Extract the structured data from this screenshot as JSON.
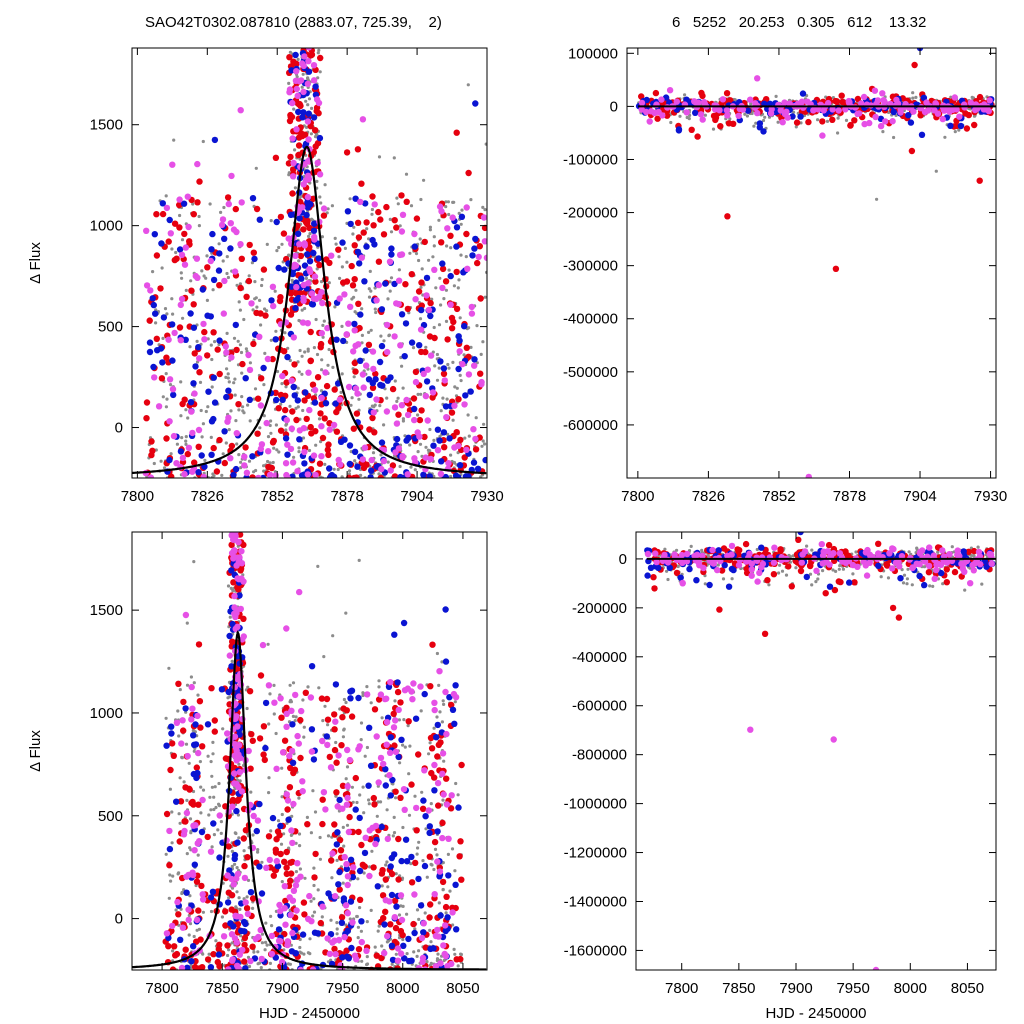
{
  "header": {
    "left": "SAO42T0302.087810 (2883.07, 725.39,    2)",
    "right": "6   5252   20.253   0.305   612    13.32"
  },
  "colors": {
    "gray": "#8c8c8c",
    "red": "#e6000f",
    "blue": "#0a14d2",
    "magenta": "#e650e6",
    "fit": "#000000"
  },
  "chart_data": [
    {
      "id": "top-left",
      "type": "scatter",
      "xlim": [
        7798,
        7930
      ],
      "ylim": [
        -250,
        1880
      ],
      "xticks": [
        7800,
        7826,
        7852,
        7878,
        7904,
        7930
      ],
      "xticklabels": [
        "7800",
        "7826",
        "7852",
        "7878",
        "7904",
        "7930"
      ],
      "yticks": [
        0,
        500,
        1000,
        1500
      ],
      "yticklabels": [
        "0",
        "500",
        "1000",
        "1500"
      ],
      "ylabel": "Δ Flux",
      "xlabel": "",
      "fit": {
        "type": "lorentzian",
        "t0": 7863,
        "tE": 12,
        "peak": 1390,
        "base": -250
      },
      "points": {
        "seed": 11,
        "x_range": [
          7803,
          7930
        ],
        "peak_x": 7862,
        "clusters": [
          7818,
          7838,
          7862,
          7888,
          7905,
          7920
        ]
      }
    },
    {
      "id": "top-right",
      "type": "scatter",
      "xlim": [
        7796,
        7932
      ],
      "ylim": [
        -700000,
        110000
      ],
      "xticks": [
        7800,
        7826,
        7852,
        7878,
        7904,
        7930
      ],
      "xticklabels": [
        "7800",
        "7826",
        "7852",
        "7878",
        "7904",
        "7930"
      ],
      "yticks": [
        100000,
        0,
        -100000,
        -200000,
        -300000,
        -400000,
        -500000,
        -600000
      ],
      "yticklabels": [
        "100000",
        "0",
        "-100000",
        "-200000",
        "-300000",
        "-400000",
        "-500000",
        "-600000"
      ],
      "ylabel": "",
      "xlabel": "",
      "outliers": [
        {
          "x": 7833,
          "y": -207000,
          "c": "red"
        },
        {
          "x": 7873,
          "y": -306000,
          "c": "red"
        },
        {
          "x": 7863,
          "y": -698000,
          "c": "magenta"
        },
        {
          "x": 7902,
          "y": 78000,
          "c": "red"
        },
        {
          "x": 7904,
          "y": 110000,
          "c": "blue"
        },
        {
          "x": 7926,
          "y": -140000,
          "c": "red"
        },
        {
          "x": 7901,
          "y": -84000,
          "c": "red"
        },
        {
          "x": 7844,
          "y": 53000,
          "c": "magenta"
        },
        {
          "x": 7888,
          "y": -175000,
          "c": "gray"
        },
        {
          "x": 7910,
          "y": -122000,
          "c": "gray"
        },
        {
          "x": 7845,
          "y": -32000,
          "c": "blue"
        },
        {
          "x": 7868,
          "y": -55000,
          "c": "magenta"
        }
      ]
    },
    {
      "id": "bottom-left",
      "type": "scatter",
      "xlim": [
        7775,
        8070
      ],
      "ylim": [
        -250,
        1880
      ],
      "xticks": [
        7800,
        7850,
        7900,
        7950,
        8000,
        8050
      ],
      "xticklabels": [
        "7800",
        "7850",
        "7900",
        "7950",
        "8000",
        "8050"
      ],
      "yticks": [
        0,
        500,
        1000,
        1500
      ],
      "yticklabels": [
        "0",
        "500",
        "1000",
        "1500"
      ],
      "ylabel": "Δ Flux",
      "xlabel": "HJD - 2450000",
      "fit": {
        "type": "lorentzian",
        "t0": 7863,
        "tE": 12,
        "peak": 1390,
        "base": -250
      },
      "points": {
        "seed": 23,
        "x_range": [
          7803,
          8050
        ],
        "peak_x": 7862,
        "clusters": [
          7825,
          7862,
          7905,
          7950,
          7990,
          8030
        ]
      }
    },
    {
      "id": "bottom-right",
      "type": "scatter",
      "xlim": [
        7760,
        8075
      ],
      "ylim": [
        -1680000,
        110000
      ],
      "xticks": [
        7800,
        7850,
        7900,
        7950,
        8000,
        8050
      ],
      "xticklabels": [
        "7800",
        "7850",
        "7900",
        "7950",
        "8000",
        "8050"
      ],
      "yticks": [
        0,
        -200000,
        -400000,
        -600000,
        -800000,
        -1000000,
        -1200000,
        -1400000,
        -1600000
      ],
      "yticklabels": [
        "0",
        "-200000",
        "-400000",
        "-600000",
        "-800000",
        "-1000000",
        "-1200000",
        "-1400000",
        "-1600000"
      ],
      "ylabel": "",
      "xlabel": "HJD - 2450000",
      "outliers": [
        {
          "x": 7833,
          "y": -207000,
          "c": "red"
        },
        {
          "x": 7873,
          "y": -306000,
          "c": "red"
        },
        {
          "x": 7860,
          "y": -698000,
          "c": "magenta"
        },
        {
          "x": 7933,
          "y": -738000,
          "c": "magenta"
        },
        {
          "x": 7970,
          "y": -1680000,
          "c": "magenta"
        },
        {
          "x": 7985,
          "y": -200000,
          "c": "red"
        },
        {
          "x": 7990,
          "y": -240000,
          "c": "red"
        },
        {
          "x": 7926,
          "y": -140000,
          "c": "red"
        },
        {
          "x": 7904,
          "y": 110000,
          "c": "blue"
        },
        {
          "x": 7902,
          "y": 78000,
          "c": "red"
        },
        {
          "x": 7844,
          "y": 53000,
          "c": "magenta"
        },
        {
          "x": 8045,
          "y": -72000,
          "c": "red"
        }
      ]
    }
  ]
}
